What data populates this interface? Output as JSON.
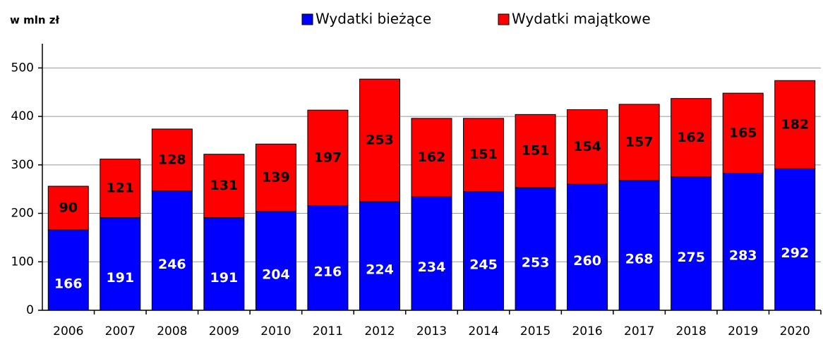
{
  "chart_data": {
    "type": "stacked_bar",
    "y_axis_label": "w mln zł",
    "categories": [
      "2006",
      "2007",
      "2008",
      "2009",
      "2010",
      "2011",
      "2012",
      "2013",
      "2014",
      "2015",
      "2016",
      "2017",
      "2018",
      "2019",
      "2020"
    ],
    "series": [
      {
        "name": "Wydatki bieżące",
        "color": "#0000ff",
        "values": [
          166,
          191,
          246,
          191,
          204,
          216,
          224,
          234,
          245,
          253,
          260,
          268,
          275,
          283,
          292
        ]
      },
      {
        "name": "Wydatki majątkowe",
        "color": "#ff0000",
        "values": [
          90,
          121,
          128,
          131,
          139,
          197,
          253,
          162,
          151,
          151,
          154,
          157,
          162,
          165,
          182
        ]
      }
    ],
    "ylim": [
      0,
      550
    ],
    "yticks": [
      0,
      100,
      200,
      300,
      400,
      500
    ],
    "grid": true,
    "legend": "top"
  }
}
